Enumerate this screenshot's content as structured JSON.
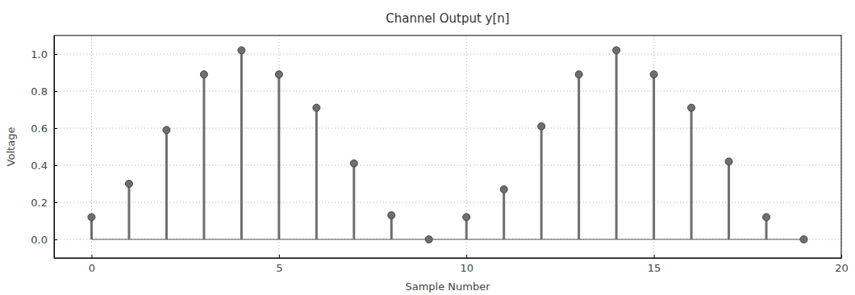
{
  "chart_data": {
    "type": "stem",
    "title": "Channel Output y[n]",
    "x_label": "Sample Number",
    "y_label": "Voltage",
    "x": [
      0,
      1,
      2,
      3,
      4,
      5,
      6,
      7,
      8,
      9,
      10,
      11,
      12,
      13,
      14,
      15,
      16,
      17,
      18,
      19
    ],
    "values": [
      0.12,
      0.3,
      0.59,
      0.89,
      1.02,
      0.89,
      0.71,
      0.41,
      0.13,
      0,
      0.12,
      0.27,
      0.61,
      0.89,
      1.02,
      0.89,
      0.71,
      0.42,
      0.12,
      0
    ],
    "color": "#6e6e6e",
    "marker": "circle",
    "xlim": [
      -1,
      20
    ],
    "xticks": [
      0,
      5,
      10,
      15,
      20
    ],
    "ylim": [
      -0.1,
      1.1
    ],
    "yticks": [
      {
        "value": 0,
        "label": "0.0"
      },
      0.2,
      0.4,
      0.6,
      0.8,
      {
        "value": 1,
        "label": "1.0"
      }
    ],
    "grid": true
  }
}
